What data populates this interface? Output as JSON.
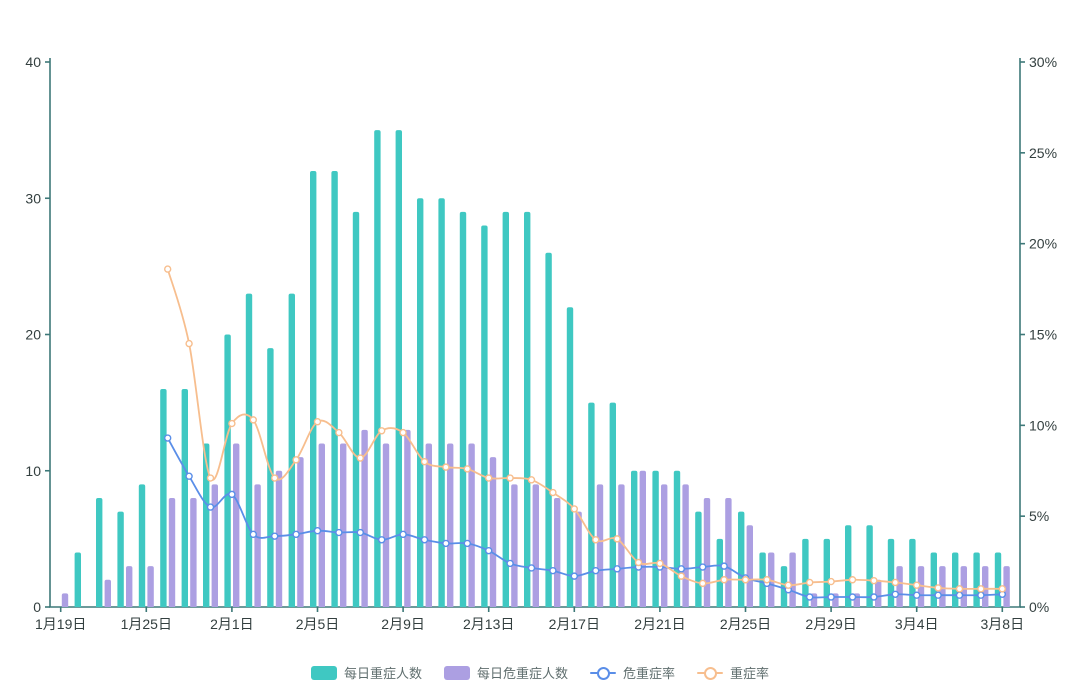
{
  "chart_data": {
    "type": "bar+line",
    "title": "",
    "categories": [
      "1月19日",
      "",
      "",
      "",
      "1月25日",
      "",
      "",
      "",
      "2月1日",
      "",
      "",
      "",
      "2月5日",
      "",
      "",
      "",
      "2月9日",
      "",
      "",
      "",
      "2月13日",
      "",
      "",
      "",
      "2月17日",
      "",
      "",
      "",
      "2月21日",
      "",
      "",
      "",
      "2月25日",
      "",
      "",
      "",
      "2月29日",
      "",
      "",
      "",
      "3月4日",
      "",
      "",
      "",
      "3月8日"
    ],
    "series": [
      {
        "name": "每日重症人数",
        "type": "bar",
        "axis": "left",
        "color": "#3FC8C2",
        "values": [
          0,
          4,
          8,
          7,
          9,
          16,
          16,
          12,
          20,
          23,
          19,
          23,
          32,
          32,
          29,
          35,
          35,
          30,
          30,
          29,
          28,
          29,
          29,
          26,
          22,
          15,
          15,
          10,
          10,
          10,
          7,
          5,
          7,
          4,
          3,
          5,
          5,
          6,
          6,
          5,
          5,
          4,
          4,
          4,
          4
        ]
      },
      {
        "name": "每日危重症人数",
        "type": "bar",
        "axis": "left",
        "color": "#AC9FE2",
        "values": [
          1,
          0,
          2,
          3,
          3,
          8,
          8,
          9,
          12,
          9,
          10,
          11,
          12,
          12,
          13,
          12,
          13,
          12,
          12,
          12,
          11,
          9,
          9,
          8,
          7,
          9,
          9,
          10,
          9,
          9,
          8,
          8,
          6,
          4,
          4,
          1,
          1,
          1,
          2,
          3,
          3,
          3,
          3,
          3,
          3
        ]
      },
      {
        "name": "危重症率",
        "type": "line",
        "axis": "right",
        "color": "#5A8EE8",
        "values": [
          null,
          null,
          null,
          null,
          null,
          9.3,
          7.2,
          5.5,
          6.2,
          4.0,
          3.9,
          4.0,
          4.2,
          4.1,
          4.1,
          3.7,
          4.0,
          3.7,
          3.5,
          3.5,
          3.1,
          2.4,
          2.15,
          2.0,
          1.7,
          2.0,
          2.1,
          2.2,
          2.2,
          2.1,
          2.2,
          2.25,
          1.6,
          1.3,
          0.95,
          0.55,
          0.55,
          0.55,
          0.55,
          0.7,
          0.65,
          0.65,
          0.65,
          0.65,
          0.7
        ]
      },
      {
        "name": "重症率",
        "type": "line",
        "axis": "right",
        "color": "#F7BE8E",
        "values": [
          null,
          null,
          null,
          null,
          null,
          18.6,
          14.5,
          7.1,
          10.1,
          10.3,
          7.1,
          8.1,
          10.2,
          9.6,
          8.2,
          9.7,
          9.6,
          8.0,
          7.7,
          7.6,
          7.1,
          7.1,
          7.0,
          6.3,
          5.4,
          3.7,
          3.75,
          2.45,
          2.4,
          1.7,
          1.3,
          1.5,
          1.5,
          1.5,
          1.2,
          1.35,
          1.4,
          1.5,
          1.45,
          1.35,
          1.2,
          1.05,
          1.0,
          1.0,
          1.0
        ]
      }
    ],
    "left_axis": {
      "tick_labels": [
        "0",
        "10",
        "20",
        "30",
        "40"
      ],
      "ticks": [
        0,
        10,
        20,
        30,
        40
      ],
      "min": 0,
      "max": 40
    },
    "right_axis": {
      "tick_labels": [
        "0%",
        "5%",
        "10%",
        "15%",
        "20%",
        "25%",
        "30%"
      ],
      "ticks": [
        0,
        5,
        10,
        15,
        20,
        25,
        30
      ],
      "min": 0,
      "max": 30
    },
    "legend": {
      "position": "bottom",
      "items": [
        "每日重症人数",
        "每日危重症人数",
        "危重症率",
        "重症率"
      ]
    },
    "grid": "off",
    "colors": {
      "axis_line": "#3D7878",
      "axis_label": "#333f3f",
      "legend_text": "#5f6e6e",
      "background": "#ffffff"
    }
  }
}
